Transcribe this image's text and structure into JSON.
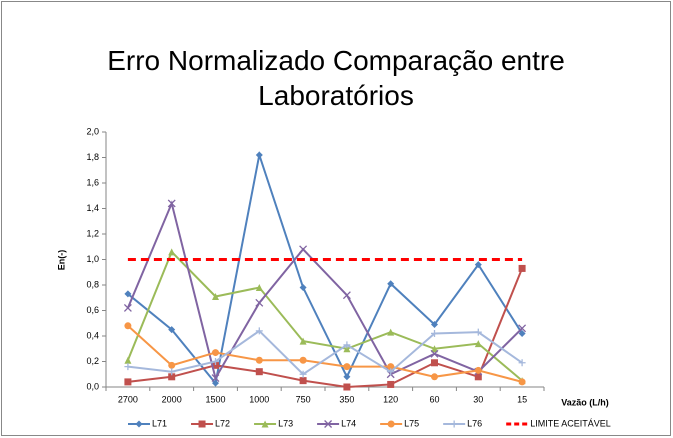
{
  "chart_data": {
    "type": "line",
    "title": "Erro Normalizado Comparação entre Laboratórios",
    "y_label": "En(-)",
    "x_label": "Vazão (L/h)",
    "categories": [
      "2700",
      "2000",
      "1500",
      "1000",
      "750",
      "350",
      "120",
      "60",
      "30",
      "15"
    ],
    "ylim": [
      0,
      2
    ],
    "yticks": [
      {
        "value": 0,
        "label": "0,0"
      },
      {
        "value": 0.2,
        "label": "0,2"
      },
      {
        "value": 0.4,
        "label": "0,4"
      },
      {
        "value": 0.6,
        "label": "0,6"
      },
      {
        "value": 0.8,
        "label": "0,8"
      },
      {
        "value": 1,
        "label": "1,0"
      },
      {
        "value": 1.2,
        "label": "1,2"
      },
      {
        "value": 1.4,
        "label": "1,4"
      },
      {
        "value": 1.6,
        "label": "1,6"
      },
      {
        "value": 1.8,
        "label": "1,8"
      },
      {
        "value": 2,
        "label": "2,0"
      }
    ],
    "grid": false,
    "legend": "bottom",
    "series": [
      {
        "name": "L71",
        "color": "#4f81bd",
        "marker": "diamond",
        "values": [
          0.73,
          0.45,
          0.03,
          1.82,
          0.78,
          0.08,
          0.81,
          0.49,
          0.96,
          0.42
        ]
      },
      {
        "name": "L72",
        "color": "#c0504d",
        "marker": "square",
        "values": [
          0.04,
          0.08,
          0.17,
          0.12,
          0.05,
          0.0,
          0.02,
          0.19,
          0.08,
          0.93
        ]
      },
      {
        "name": "L73",
        "color": "#9bbb59",
        "marker": "triangle",
        "values": [
          0.21,
          1.06,
          0.71,
          0.78,
          0.36,
          0.3,
          0.43,
          0.3,
          0.34,
          0.05
        ]
      },
      {
        "name": "L74",
        "color": "#8064a2",
        "marker": "x",
        "values": [
          0.62,
          1.44,
          0.07,
          0.66,
          1.08,
          0.72,
          0.1,
          0.26,
          0.12,
          0.46
        ]
      },
      {
        "name": "L75",
        "color": "#f79646",
        "marker": "circle",
        "values": [
          0.48,
          0.17,
          0.27,
          0.21,
          0.21,
          0.16,
          0.16,
          0.08,
          0.13,
          0.04
        ]
      },
      {
        "name": "L76",
        "color": "#a5b8dc",
        "marker": "plus",
        "values": [
          0.16,
          0.12,
          0.2,
          0.44,
          0.1,
          0.33,
          0.12,
          0.42,
          0.43,
          0.19
        ]
      },
      {
        "name": "LIMITE ACEITÁVEL",
        "color": "#ff0000",
        "marker": "none",
        "dash": true,
        "values": [
          1,
          1,
          1,
          1,
          1,
          1,
          1,
          1,
          1,
          1
        ]
      }
    ]
  }
}
